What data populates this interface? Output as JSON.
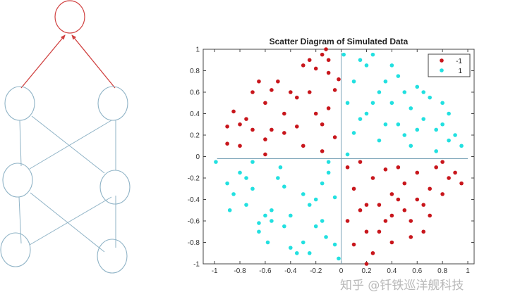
{
  "watermark": "知乎 @钎铁巡洋舰科技",
  "diagram": {
    "colors": {
      "output": "#d0403f",
      "hidden": "#8fb3c6"
    }
  },
  "chart_data": {
    "type": "scatter",
    "title": "Scatter Diagram of Simulated Data",
    "xlabel": "",
    "ylabel": "",
    "xlim": [
      -1.09,
      1.05
    ],
    "ylim": [
      -1,
      1
    ],
    "xticks": [
      -1,
      -0.8,
      -0.6,
      -0.4,
      -0.2,
      0,
      0.2,
      0.4,
      0.6,
      0.8,
      1
    ],
    "xtick_labels": [
      "-1",
      "-0.8",
      "-0.6",
      "-0.4",
      "-0.2",
      "0",
      "0.2",
      "0.4",
      "0.6",
      "0.8",
      "1"
    ],
    "yticks": [
      -1,
      -0.8,
      -0.6,
      -0.4,
      -0.2,
      0,
      0.2,
      0.4,
      0.6,
      0.8,
      1
    ],
    "ytick_labels": [
      "-1",
      "-0.8",
      "-0.6",
      "-0.4",
      "-0.2",
      "0",
      "0.2",
      "0.4",
      "0.6",
      "0.8",
      "1"
    ],
    "grid": false,
    "reference_lines": {
      "horizontal_y": -0.02,
      "vertical_x": 0
    },
    "legend": {
      "placement": "top-right",
      "entries": [
        "-1",
        "1"
      ]
    },
    "series": [
      {
        "name": "-1",
        "color": "#c8161c",
        "points": [
          [
            -0.9,
            0.28
          ],
          [
            -0.85,
            0.42
          ],
          [
            -0.8,
            0.3
          ],
          [
            -0.75,
            0.35
          ],
          [
            -0.7,
            0.6
          ],
          [
            -0.65,
            0.7
          ],
          [
            -0.6,
            0.16
          ],
          [
            -0.55,
            0.25
          ],
          [
            -0.5,
            0.7
          ],
          [
            -0.45,
            0.22
          ],
          [
            -0.4,
            0.6
          ],
          [
            -0.35,
            0.55
          ],
          [
            -0.3,
            0.85
          ],
          [
            -0.25,
            0.9
          ],
          [
            -0.2,
            0.82
          ],
          [
            -0.15,
            0.95
          ],
          [
            -0.1,
            0.78
          ],
          [
            -0.05,
            0.62
          ],
          [
            -0.2,
            0.4
          ],
          [
            -0.15,
            0.3
          ],
          [
            -0.1,
            0.45
          ],
          [
            -0.05,
            0.18
          ],
          [
            -0.3,
            0.1
          ],
          [
            -0.15,
            0.05
          ],
          [
            -0.6,
            0.5
          ],
          [
            -0.7,
            0.25
          ],
          [
            -0.8,
            0.1
          ],
          [
            -0.9,
            0.12
          ],
          [
            -0.55,
            0.62
          ],
          [
            -0.45,
            0.4
          ],
          [
            -0.35,
            0.28
          ],
          [
            -0.25,
            0.6
          ],
          [
            -0.6,
            0.02
          ],
          [
            -0.1,
            0.9
          ],
          [
            -0.02,
            0.72
          ],
          [
            -0.12,
            1.0
          ],
          [
            0.05,
            -0.1
          ],
          [
            0.1,
            -0.3
          ],
          [
            0.15,
            -0.05
          ],
          [
            0.2,
            -0.45
          ],
          [
            0.25,
            -0.2
          ],
          [
            0.3,
            -0.7
          ],
          [
            0.35,
            -0.12
          ],
          [
            0.4,
            -0.55
          ],
          [
            0.45,
            -0.4
          ],
          [
            0.5,
            -0.25
          ],
          [
            0.55,
            -0.6
          ],
          [
            0.6,
            -0.15
          ],
          [
            0.65,
            -0.45
          ],
          [
            0.7,
            -0.3
          ],
          [
            0.75,
            -0.1
          ],
          [
            0.8,
            -0.35
          ],
          [
            0.85,
            -0.2
          ],
          [
            0.9,
            -0.15
          ],
          [
            0.3,
            -0.45
          ],
          [
            0.2,
            -0.7
          ],
          [
            0.1,
            -0.82
          ],
          [
            0.25,
            -0.9
          ],
          [
            0.4,
            -0.8
          ],
          [
            0.55,
            -0.75
          ],
          [
            0.65,
            -0.7
          ],
          [
            0.45,
            -0.1
          ],
          [
            0.7,
            -0.55
          ],
          [
            0.8,
            -0.05
          ],
          [
            0.35,
            -0.6
          ],
          [
            0.15,
            -0.5
          ],
          [
            0.05,
            -0.6
          ],
          [
            0.6,
            -0.4
          ],
          [
            0.5,
            -0.5
          ],
          [
            0.95,
            -0.25
          ],
          [
            0.2,
            -1.0
          ],
          [
            0.4,
            -0.35
          ]
        ]
      },
      {
        "name": "1",
        "color": "#22e0e0",
        "points": [
          [
            0.05,
            0.5
          ],
          [
            0.1,
            0.7
          ],
          [
            0.15,
            0.35
          ],
          [
            0.2,
            0.85
          ],
          [
            0.25,
            0.95
          ],
          [
            0.3,
            0.6
          ],
          [
            0.35,
            0.3
          ],
          [
            0.4,
            0.5
          ],
          [
            0.45,
            0.75
          ],
          [
            0.5,
            0.2
          ],
          [
            0.55,
            0.45
          ],
          [
            0.6,
            0.65
          ],
          [
            0.65,
            0.35
          ],
          [
            0.7,
            0.55
          ],
          [
            0.75,
            0.25
          ],
          [
            0.8,
            0.5
          ],
          [
            0.85,
            0.4
          ],
          [
            0.9,
            0.2
          ],
          [
            0.95,
            0.1
          ],
          [
            0.3,
            0.15
          ],
          [
            0.15,
            0.9
          ],
          [
            0.1,
            0.22
          ],
          [
            0.2,
            0.4
          ],
          [
            0.4,
            0.85
          ],
          [
            0.55,
            0.1
          ],
          [
            0.65,
            0.6
          ],
          [
            0.75,
            0.05
          ],
          [
            0.85,
            0.15
          ],
          [
            0.45,
            0.3
          ],
          [
            0.35,
            0.7
          ],
          [
            0.25,
            0.5
          ],
          [
            0.05,
            0.02
          ],
          [
            0.6,
            0.25
          ],
          [
            0.8,
            0.3
          ],
          [
            0.02,
            0.95
          ],
          [
            0.5,
            0.6
          ],
          [
            -0.99,
            -0.05
          ],
          [
            -0.9,
            -0.25
          ],
          [
            -0.85,
            -0.35
          ],
          [
            -0.8,
            -0.15
          ],
          [
            -0.75,
            -0.2
          ],
          [
            -0.7,
            -0.3
          ],
          [
            -0.65,
            -0.7
          ],
          [
            -0.6,
            -0.55
          ],
          [
            -0.55,
            -0.6
          ],
          [
            -0.5,
            -0.2
          ],
          [
            -0.45,
            -0.65
          ],
          [
            -0.4,
            -0.85
          ],
          [
            -0.35,
            -0.9
          ],
          [
            -0.3,
            -0.8
          ],
          [
            -0.25,
            -0.45
          ],
          [
            -0.2,
            -0.4
          ],
          [
            -0.15,
            -0.25
          ],
          [
            -0.1,
            -0.15
          ],
          [
            -0.05,
            -0.38
          ],
          [
            -0.12,
            -0.75
          ],
          [
            -0.2,
            -0.65
          ],
          [
            -0.25,
            -0.9
          ],
          [
            -0.48,
            -0.1
          ],
          [
            -0.58,
            -0.8
          ],
          [
            -0.65,
            -0.62
          ],
          [
            -0.88,
            -0.5
          ],
          [
            -0.75,
            -0.45
          ],
          [
            -0.45,
            -0.28
          ],
          [
            -0.3,
            -0.35
          ],
          [
            -0.15,
            -0.6
          ],
          [
            -0.05,
            -0.82
          ],
          [
            -0.02,
            -0.95
          ],
          [
            -0.7,
            -0.05
          ],
          [
            -0.55,
            -0.5
          ],
          [
            -0.4,
            -0.55
          ],
          [
            -0.1,
            -0.05
          ]
        ]
      }
    ]
  }
}
